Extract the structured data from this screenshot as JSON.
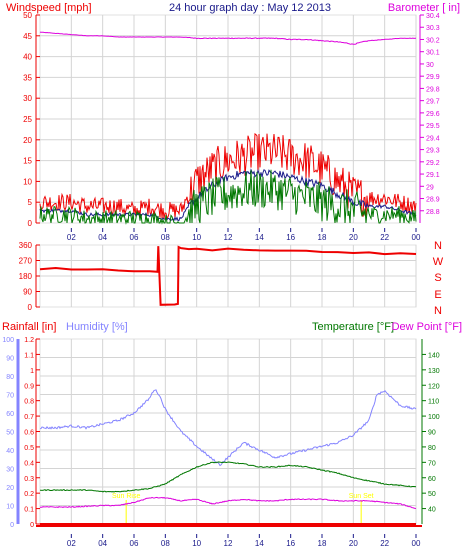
{
  "colors": {
    "red": "#ee0000",
    "magenta": "#dd00dd",
    "navy": "#1a1a8a",
    "green": "#007700",
    "lavender": "#8484ff",
    "yellow": "#ffff00",
    "grid": "#d4d4d4",
    "frame": "#e0e0e0",
    "bg": "#ffffff"
  },
  "chart_data": [
    {
      "type": "line",
      "title": "24 hour graph day : May 12 2013",
      "left_axis_label": "Windspeed [mph]",
      "right_axis_label": "Barometer [ in]",
      "x_ticks": [
        "02",
        "04",
        "06",
        "08",
        "10",
        "12",
        "14",
        "16",
        "18",
        "20",
        "22",
        "00"
      ],
      "x_range": [
        0,
        24
      ],
      "y_left": {
        "range": [
          0,
          50
        ],
        "ticks": [
          "0",
          "5",
          "10",
          "15",
          "20",
          "25",
          "30",
          "35",
          "40",
          "45",
          "50"
        ]
      },
      "y_right": {
        "range": [
          28.7,
          30.4
        ],
        "ticks": [
          "28.8",
          "28.9",
          "29",
          "29.1",
          "29.2",
          "29.3",
          "29.4",
          "29.5",
          "29.6",
          "29.7",
          "29.8",
          "29.9",
          "30",
          "30.1",
          "30.2",
          "30.3",
          "30.4"
        ]
      },
      "series": [
        {
          "axis": "right",
          "color": "magenta",
          "x": [
            0,
            1,
            2,
            3,
            4,
            5,
            6,
            7,
            8,
            9,
            10,
            11,
            12,
            13,
            14,
            15,
            16,
            17,
            18,
            19,
            19.6,
            20,
            20.6,
            21,
            22,
            23,
            24
          ],
          "values": [
            30.26,
            30.25,
            30.24,
            30.23,
            30.23,
            30.22,
            30.22,
            30.22,
            30.22,
            30.22,
            30.21,
            30.21,
            30.21,
            30.21,
            30.21,
            30.21,
            30.2,
            30.2,
            30.19,
            30.18,
            30.17,
            30.16,
            30.18,
            30.19,
            30.2,
            30.21,
            30.21
          ]
        },
        {
          "axis": "left",
          "color": "red",
          "x": [
            0,
            1,
            2,
            3,
            4,
            5,
            6,
            7,
            8,
            9,
            9.5,
            10,
            11,
            12,
            13,
            14,
            15,
            16,
            17,
            18,
            19,
            20,
            21,
            22,
            23,
            24
          ],
          "values": [
            5,
            5,
            5,
            4,
            4,
            4,
            3,
            4,
            3,
            3,
            7,
            10,
            13,
            15,
            16,
            17,
            17,
            16,
            15,
            13,
            10,
            7,
            6,
            6,
            5,
            4
          ]
        },
        {
          "axis": "left",
          "color": "navy",
          "x": [
            0,
            1,
            2,
            3,
            4,
            5,
            6,
            7,
            8,
            9,
            9.5,
            10,
            11,
            12,
            13,
            14,
            15,
            16,
            17,
            18,
            19,
            20,
            21,
            22,
            23,
            24
          ],
          "values": [
            3,
            3,
            3,
            2,
            2,
            2,
            2,
            2,
            1,
            1,
            4,
            6,
            9,
            11,
            12,
            12,
            12,
            11,
            10,
            9,
            7,
            5,
            4,
            4,
            3,
            2
          ]
        },
        {
          "axis": "left",
          "color": "green",
          "x": [
            0,
            1,
            2,
            3,
            4,
            5,
            6,
            7,
            8,
            9,
            9.5,
            10,
            11,
            12,
            13,
            14,
            15,
            16,
            17,
            18,
            19,
            20,
            21,
            22,
            23,
            24
          ],
          "values": [
            2,
            2,
            2,
            1,
            1,
            1,
            1,
            1,
            0,
            0,
            2,
            4,
            6,
            7,
            8,
            8,
            8,
            7,
            6,
            5,
            4,
            3,
            2,
            2,
            2,
            1
          ]
        }
      ]
    },
    {
      "type": "line",
      "y_ticks": [
        "0",
        "90",
        "180",
        "270",
        "360"
      ],
      "y_range": [
        0,
        360
      ],
      "right_labels": [
        "N",
        "W",
        "S",
        "E",
        "N"
      ],
      "series": [
        {
          "color": "red",
          "x": [
            0,
            1,
            2,
            3,
            4,
            5,
            6,
            7,
            7.5,
            7.55,
            7.7,
            8.6,
            8.8,
            8.85,
            9.0,
            9.5,
            10,
            11,
            12,
            13,
            14,
            15,
            16,
            17,
            18,
            19,
            20,
            21,
            22,
            23,
            24
          ],
          "values": [
            220,
            225,
            220,
            215,
            220,
            215,
            210,
            210,
            205,
            350,
            15,
            15,
            15,
            350,
            345,
            340,
            335,
            330,
            335,
            330,
            330,
            325,
            330,
            325,
            320,
            320,
            315,
            315,
            310,
            315,
            310
          ]
        }
      ]
    },
    {
      "type": "line",
      "legend": [
        "Rainfall [in]",
        "Humidity [%]",
        "Temperature [°F]",
        "Dew Point [°F]"
      ],
      "x_ticks": [
        "02",
        "04",
        "06",
        "08",
        "10",
        "12",
        "14",
        "16",
        "18",
        "20",
        "22",
        "00"
      ],
      "y_humidity": {
        "range": [
          0,
          100
        ],
        "ticks": [
          "0",
          "10",
          "20",
          "30",
          "40",
          "50",
          "60",
          "70",
          "80",
          "90",
          "100"
        ]
      },
      "y_rain": {
        "range": [
          0,
          1.2
        ],
        "ticks": [
          "0",
          "0.1",
          "0.2",
          "0.3",
          "0.4",
          "0.5",
          "0.6",
          "0.7",
          "0.8",
          "0.9",
          "1",
          "1.1",
          "1.2"
        ]
      },
      "y_temp": {
        "range": [
          30,
          150
        ],
        "ticks": [
          "40",
          "50",
          "60",
          "70",
          "80",
          "90",
          "100",
          "110",
          "120",
          "130",
          "140"
        ]
      },
      "annotations": [
        "Sun Rise",
        "Sun Set"
      ],
      "annotation_x": [
        5.5,
        20.5
      ],
      "series": [
        {
          "name": "Humidity [%]",
          "axis": "humidity",
          "color": "lavender",
          "x": [
            0,
            1,
            2,
            3,
            4,
            5,
            6,
            6.5,
            7,
            7.3,
            7.6,
            8,
            9,
            10,
            11,
            11.5,
            12,
            13,
            14,
            15,
            16,
            17,
            18,
            19,
            20,
            21,
            21.5,
            22,
            23,
            24
          ],
          "values": [
            52,
            52,
            53,
            52,
            54,
            56,
            60,
            64,
            68,
            73,
            70,
            62,
            50,
            42,
            35,
            32,
            36,
            44,
            40,
            36,
            38,
            40,
            42,
            44,
            48,
            56,
            70,
            72,
            64,
            62
          ]
        },
        {
          "name": "Temperature [°F]",
          "axis": "temp",
          "color": "green",
          "x": [
            0,
            2,
            3,
            4,
            5,
            6,
            7,
            8,
            9,
            10,
            11,
            12,
            13,
            14,
            15,
            16,
            17,
            18,
            19,
            20,
            21,
            22,
            23,
            24
          ],
          "values": [
            52,
            52,
            52,
            51,
            51,
            52,
            53,
            56,
            62,
            67,
            70,
            70,
            69,
            67,
            67,
            68,
            67,
            65,
            63,
            60,
            58,
            56,
            55,
            54
          ]
        },
        {
          "name": "Dew Point [°F]",
          "axis": "temp",
          "color": "magenta",
          "x": [
            0,
            2,
            4,
            5,
            6,
            7,
            8,
            9,
            10,
            11,
            12,
            13,
            14,
            15,
            16,
            17,
            18,
            19,
            20,
            21,
            22,
            23,
            24
          ],
          "values": [
            41,
            41,
            42,
            42,
            44,
            47,
            47,
            45,
            46,
            43,
            45,
            46,
            45,
            45,
            46,
            46,
            46,
            45,
            45,
            45,
            44,
            43,
            40
          ]
        },
        {
          "name": "Rainfall [in]",
          "axis": "rain",
          "color": "red",
          "x": [
            0,
            24
          ],
          "values": [
            0,
            0
          ]
        }
      ]
    }
  ]
}
